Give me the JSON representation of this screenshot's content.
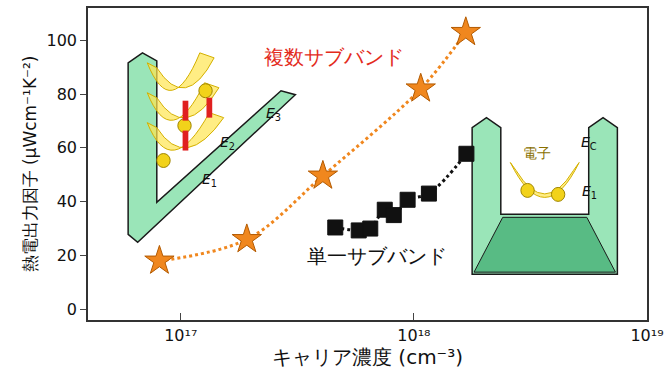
{
  "chart_data": {
    "type": "scatter",
    "x_label": "キャリア濃度 (cm⁻³)",
    "y_label": "熱電出力因子 (μWcm⁻¹K⁻²)",
    "log": "x",
    "grid": false,
    "xlim": [
      4e+16,
      1e+19
    ],
    "xticks": [
      {
        "value": 1e+17,
        "label": "10¹⁷"
      },
      {
        "value": 1e+18,
        "label": "10¹⁸"
      },
      {
        "value": 1e+19,
        "label": "10¹⁹"
      }
    ],
    "ylim": [
      -4,
      112
    ],
    "yticks": [
      0,
      20,
      40,
      60,
      80,
      100
    ],
    "series": [
      {
        "name": "複数サブバンド",
        "color": "#f0871e",
        "marker": "star",
        "line_style": "dotted",
        "x": [
          8.1e+16,
          1.92e+17,
          4.07e+17,
          1.07e+18,
          1.67e+18
        ],
        "values": [
          18,
          26,
          49.6,
          82,
          103
        ]
      },
      {
        "name": "単一サブバンド",
        "color": "#111111",
        "marker": "square",
        "line_style": "dotted",
        "x": [
          4.6e+17,
          5.8e+17,
          6.5e+17,
          7.5e+17,
          8.2e+17,
          9.4e+17,
          1.16e+18,
          1.68e+18
        ],
        "values": [
          30.4,
          29.3,
          30,
          37,
          35,
          40.7,
          43,
          57.8
        ]
      }
    ],
    "diagram_labels": {
      "multi": [
        {
          "text": "E",
          "sub": "3"
        },
        {
          "text": "E",
          "sub": "2"
        },
        {
          "text": "E",
          "sub": "1"
        }
      ],
      "single": [
        {
          "text": "電子"
        },
        {
          "text": "E",
          "sub": "C"
        },
        {
          "text": "E",
          "sub": "1"
        }
      ]
    }
  }
}
